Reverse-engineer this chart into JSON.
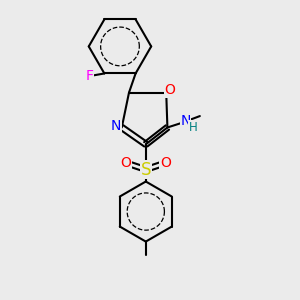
{
  "background_color": "#ebebeb",
  "bond_color": "#000000",
  "bond_width": 1.5,
  "atom_colors": {
    "F": "#ff00ff",
    "O": "#ff0000",
    "N": "#0000ff",
    "S": "#cccc00",
    "H": "#008080",
    "C": "#000000"
  },
  "font_size_atom": 10,
  "font_size_small": 8.5
}
